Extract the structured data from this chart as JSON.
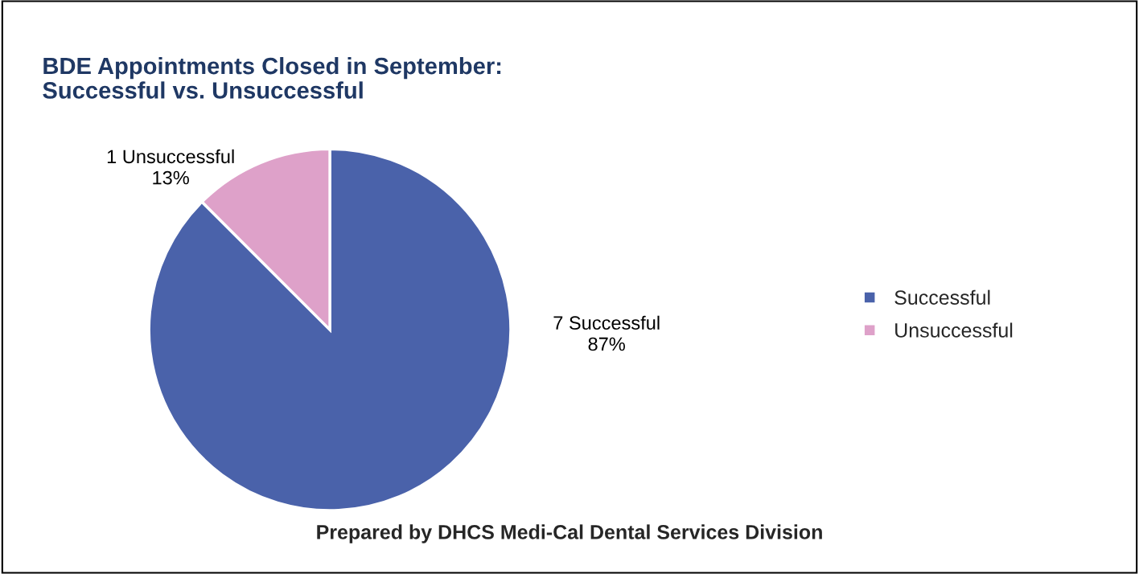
{
  "chart_data": {
    "type": "pie",
    "title": "BDE Appointments Closed in September:\nSuccessful vs. Unsuccessful",
    "categories": [
      "Successful",
      "Unsuccessful"
    ],
    "values": [
      7,
      1
    ],
    "colors": [
      "#4a62aa",
      "#dea1c9"
    ],
    "value_labels": [
      "7 Successful\n87%",
      "1 Unsuccessful\n13%"
    ],
    "legend": "right",
    "annotations": [
      "Prepared by DHCS Medi-Cal Dental Services Division"
    ]
  }
}
